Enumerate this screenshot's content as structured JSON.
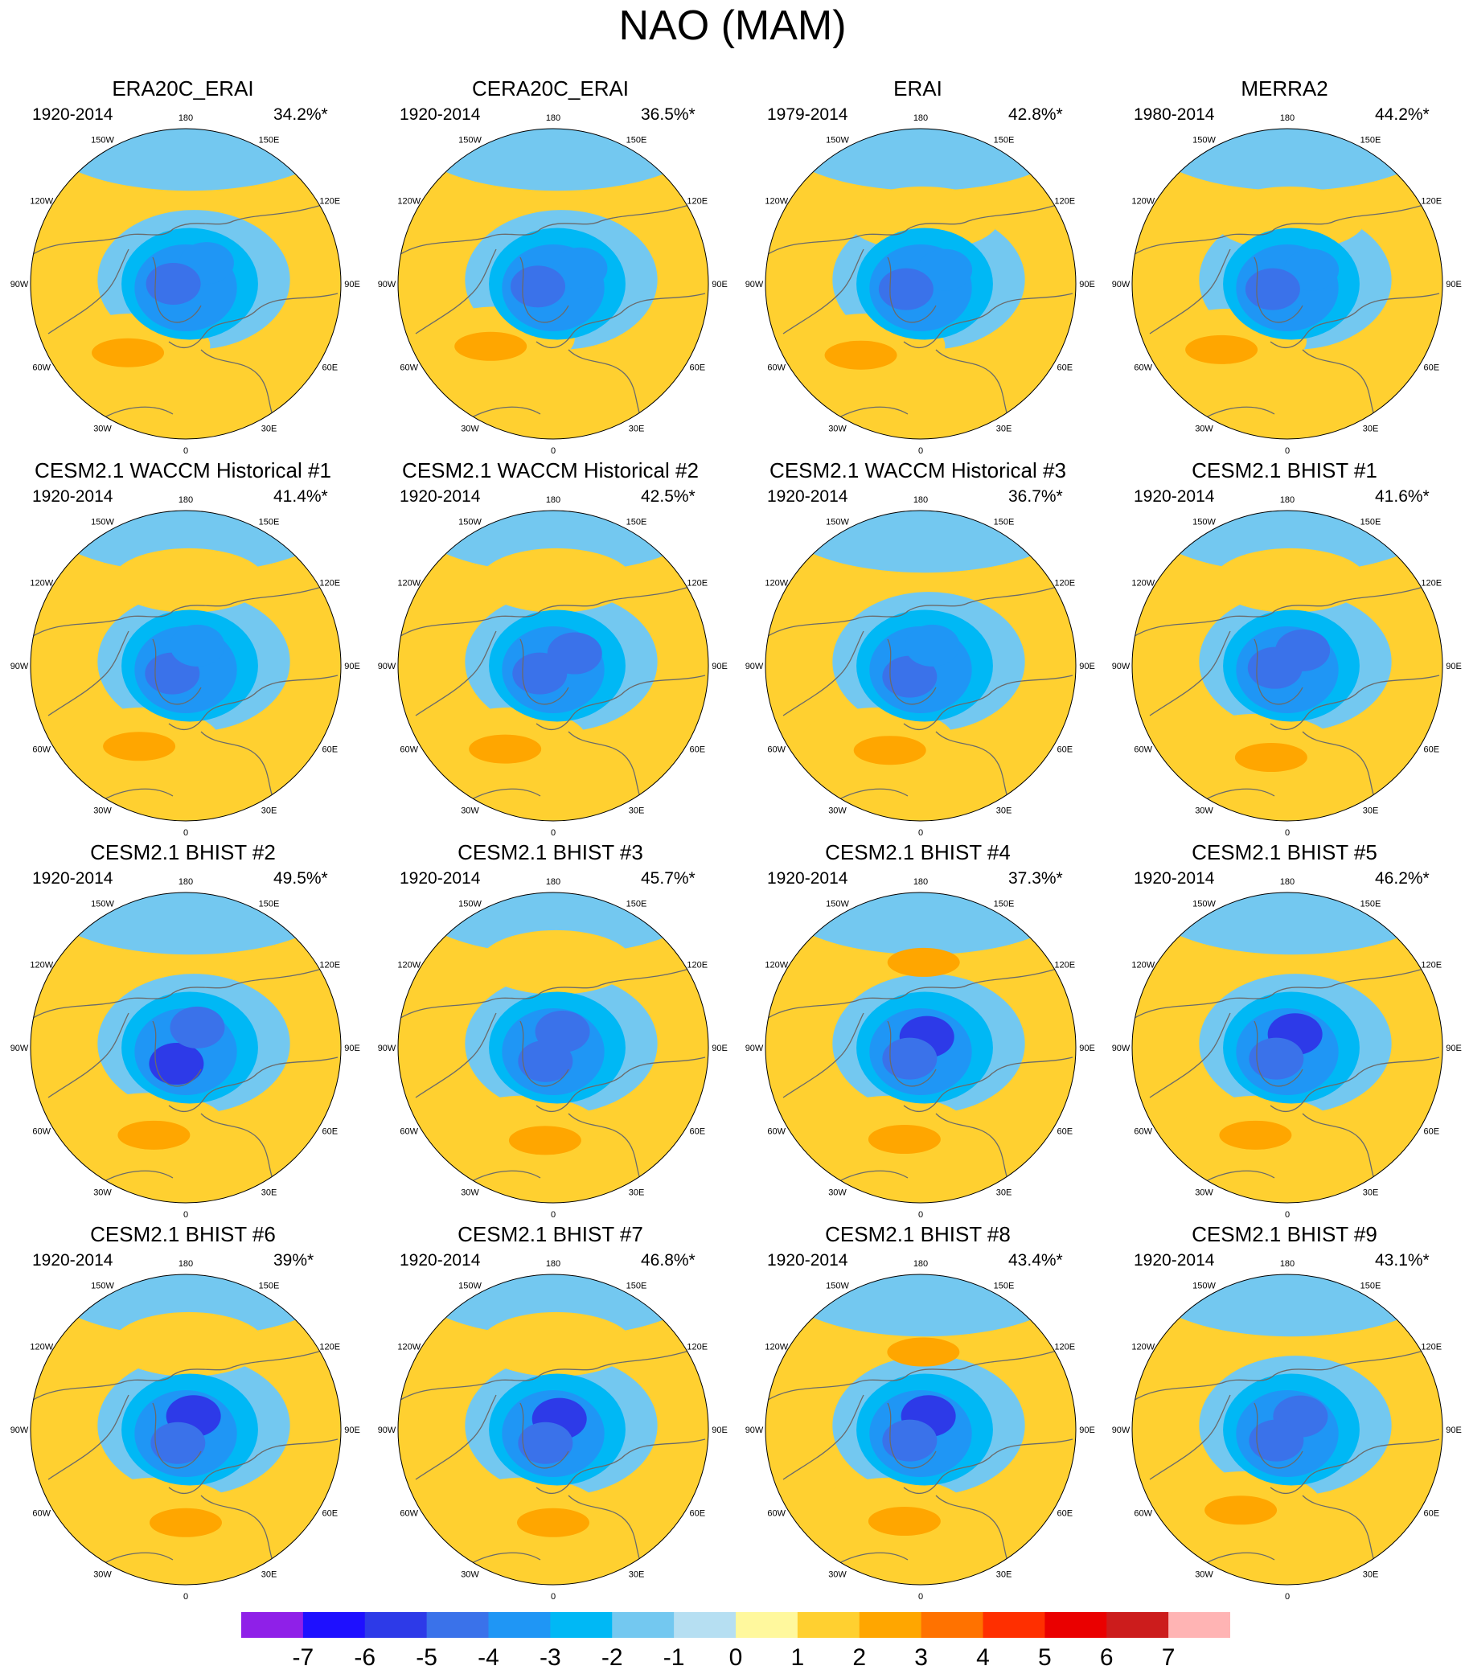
{
  "figure": {
    "title": "NAO (MAM)",
    "lon_labels": [
      "180",
      "150E",
      "120E",
      "90E",
      "60E",
      "30E",
      "0",
      "30W",
      "60W",
      "90W",
      "120W",
      "150W"
    ],
    "panels": [
      {
        "title": "ERA20C_ERAI",
        "period": "1920-2014",
        "variance": "34.2%*",
        "lows": [
          {
            "lon": 135,
            "r": 0.19,
            "lev": -3
          },
          {
            "lon": -90,
            "r": 0.08,
            "lev": -4
          }
        ],
        "highs": [
          {
            "lon": -40,
            "r": 0.52,
            "lev": 1
          },
          {
            "lon": -40,
            "r": 0.58,
            "lev": 2
          }
        ]
      },
      {
        "title": "CERA20C_ERAI",
        "period": "1920-2014",
        "variance": "36.5%*",
        "lows": [
          {
            "lon": 120,
            "r": 0.2,
            "lev": -3
          },
          {
            "lon": -80,
            "r": 0.1,
            "lev": -4
          }
        ],
        "highs": [
          {
            "lon": -45,
            "r": 0.5,
            "lev": 1
          },
          {
            "lon": -45,
            "r": 0.57,
            "lev": 2
          }
        ]
      },
      {
        "title": "ERAI",
        "period": "1979-2014",
        "variance": "42.8%*",
        "lows": [
          {
            "lon": 120,
            "r": 0.18,
            "lev": -3
          },
          {
            "lon": -70,
            "r": 0.1,
            "lev": -4
          }
        ],
        "highs": [
          {
            "lon": -40,
            "r": 0.52,
            "lev": 1
          },
          {
            "lon": -40,
            "r": 0.6,
            "lev": 2
          },
          {
            "lon": 178,
            "r": 0.42,
            "lev": 1
          }
        ]
      },
      {
        "title": "MERRA2",
        "period": "1980-2014",
        "variance": "44.2%*",
        "lows": [
          {
            "lon": 120,
            "r": 0.18,
            "lev": -3
          },
          {
            "lon": -70,
            "r": 0.1,
            "lev": -4
          }
        ],
        "highs": [
          {
            "lon": -45,
            "r": 0.52,
            "lev": 1
          },
          {
            "lon": -45,
            "r": 0.6,
            "lev": 2
          },
          {
            "lon": 178,
            "r": 0.42,
            "lev": 1
          }
        ]
      },
      {
        "title": "CESM2.1 WACCM Historical #1",
        "period": "1920-2014",
        "variance": "41.4%*",
        "lows": [
          {
            "lon": -60,
            "r": 0.1,
            "lev": -4
          },
          {
            "lon": 150,
            "r": 0.15,
            "lev": -3
          }
        ],
        "highs": [
          {
            "lon": -30,
            "r": 0.55,
            "lev": 1
          },
          {
            "lon": -30,
            "r": 0.6,
            "lev": 2
          },
          {
            "lon": 178,
            "r": 0.55,
            "lev": 1
          }
        ]
      },
      {
        "title": "CESM2.1 WACCM Historical #2",
        "period": "1920-2014",
        "variance": "42.5%*",
        "lows": [
          {
            "lon": 120,
            "r": 0.16,
            "lev": -4
          },
          {
            "lon": -60,
            "r": 0.1,
            "lev": -4
          }
        ],
        "highs": [
          {
            "lon": -30,
            "r": 0.55,
            "lev": 1
          },
          {
            "lon": -30,
            "r": 0.62,
            "lev": 2
          },
          {
            "lon": 178,
            "r": 0.55,
            "lev": 1
          }
        ]
      },
      {
        "title": "CESM2.1 WACCM Historical #3",
        "period": "1920-2014",
        "variance": "36.7%*",
        "lows": [
          {
            "lon": -45,
            "r": 0.1,
            "lev": -4
          },
          {
            "lon": 150,
            "r": 0.15,
            "lev": -3
          }
        ],
        "highs": [
          {
            "lon": -30,
            "r": 0.55,
            "lev": 1
          },
          {
            "lon": -20,
            "r": 0.58,
            "lev": 2
          }
        ]
      },
      {
        "title": "CESM2.1 BHIST #1",
        "period": "1920-2014",
        "variance": "41.6%*",
        "lows": [
          {
            "lon": 135,
            "r": 0.14,
            "lev": -4
          },
          {
            "lon": -80,
            "r": 0.08,
            "lev": -4
          }
        ],
        "highs": [
          {
            "lon": -20,
            "r": 0.55,
            "lev": 1
          },
          {
            "lon": -10,
            "r": 0.6,
            "lev": 2
          },
          {
            "lon": 178,
            "r": 0.55,
            "lev": 1
          }
        ]
      },
      {
        "title": "CESM2.1 BHIST #2",
        "period": "1920-2014",
        "variance": "49.5%*",
        "lows": [
          {
            "lon": -30,
            "r": 0.12,
            "lev": -5
          },
          {
            "lon": 150,
            "r": 0.15,
            "lev": -4
          }
        ],
        "highs": [
          {
            "lon": -25,
            "r": 0.55,
            "lev": 1
          },
          {
            "lon": -20,
            "r": 0.6,
            "lev": 2
          }
        ]
      },
      {
        "title": "CESM2.1 BHIST #3",
        "period": "1920-2014",
        "variance": "45.7%*",
        "lows": [
          {
            "lon": 150,
            "r": 0.12,
            "lev": -4
          },
          {
            "lon": -30,
            "r": 0.1,
            "lev": -4
          }
        ],
        "highs": [
          {
            "lon": -20,
            "r": 0.55,
            "lev": 1
          },
          {
            "lon": -5,
            "r": 0.6,
            "lev": 2
          },
          {
            "lon": 178,
            "r": 0.55,
            "lev": 1
          }
        ]
      },
      {
        "title": "CESM2.1 BHIST #4",
        "period": "1920-2014",
        "variance": "37.3%*",
        "lows": [
          {
            "lon": 150,
            "r": 0.08,
            "lev": -5
          },
          {
            "lon": -45,
            "r": 0.1,
            "lev": -4
          }
        ],
        "highs": [
          {
            "lon": -20,
            "r": 0.55,
            "lev": 1
          },
          {
            "lon": -10,
            "r": 0.6,
            "lev": 2
          },
          {
            "lon": 178,
            "r": 0.55,
            "lev": 2
          }
        ]
      },
      {
        "title": "CESM2.1 BHIST #5",
        "period": "1920-2014",
        "variance": "46.2%*",
        "lows": [
          {
            "lon": 150,
            "r": 0.1,
            "lev": -5
          },
          {
            "lon": -45,
            "r": 0.1,
            "lev": -4
          }
        ],
        "highs": [
          {
            "lon": -20,
            "r": 0.55,
            "lev": 1
          },
          {
            "lon": -20,
            "r": 0.6,
            "lev": 2
          }
        ]
      },
      {
        "title": "CESM2.1 BHIST #6",
        "period": "1920-2014",
        "variance": "39%*",
        "lows": [
          {
            "lon": 150,
            "r": 0.1,
            "lev": -5
          },
          {
            "lon": -30,
            "r": 0.1,
            "lev": -4
          }
        ],
        "highs": [
          {
            "lon": -20,
            "r": 0.55,
            "lev": 1
          },
          {
            "lon": 0,
            "r": 0.6,
            "lev": 2
          },
          {
            "lon": 178,
            "r": 0.55,
            "lev": 1
          }
        ]
      },
      {
        "title": "CESM2.1 BHIST #7",
        "period": "1920-2014",
        "variance": "46.8%*",
        "lows": [
          {
            "lon": 150,
            "r": 0.08,
            "lev": -5
          },
          {
            "lon": -30,
            "r": 0.1,
            "lev": -4
          }
        ],
        "highs": [
          {
            "lon": -20,
            "r": 0.55,
            "lev": 1
          },
          {
            "lon": 0,
            "r": 0.6,
            "lev": 2
          },
          {
            "lon": 178,
            "r": 0.55,
            "lev": 1
          }
        ]
      },
      {
        "title": "CESM2.1 BHIST #8",
        "period": "1920-2014",
        "variance": "43.4%*",
        "lows": [
          {
            "lon": 150,
            "r": 0.1,
            "lev": -5
          },
          {
            "lon": -45,
            "r": 0.1,
            "lev": -4
          }
        ],
        "highs": [
          {
            "lon": -20,
            "r": 0.55,
            "lev": 1
          },
          {
            "lon": -10,
            "r": 0.6,
            "lev": 2
          },
          {
            "lon": 178,
            "r": 0.5,
            "lev": 2
          }
        ]
      },
      {
        "title": "CESM2.1 BHIST #9",
        "period": "1920-2014",
        "variance": "43.1%*",
        "lows": [
          {
            "lon": 135,
            "r": 0.12,
            "lev": -4
          },
          {
            "lon": -45,
            "r": 0.1,
            "lev": -4
          }
        ],
        "highs": [
          {
            "lon": -30,
            "r": 0.55,
            "lev": 1
          },
          {
            "lon": -30,
            "r": 0.6,
            "lev": 2
          }
        ]
      }
    ]
  },
  "colorbar": {
    "labels": [
      "-7",
      "-6",
      "-5",
      "-4",
      "-3",
      "-2",
      "-1",
      "0",
      "1",
      "2",
      "3",
      "4",
      "5",
      "6",
      "7"
    ],
    "colors": [
      "#8f20e8",
      "#1e10ff",
      "#2d3ae8",
      "#3a72ea",
      "#1f96f5",
      "#00b8f5",
      "#73c8f0",
      "#b6dff2",
      "#fff89d",
      "#ffd030",
      "#ffa600",
      "#ff7200",
      "#ff2f00",
      "#ea0000",
      "#cc1c1c",
      "#ffb4b4"
    ]
  }
}
